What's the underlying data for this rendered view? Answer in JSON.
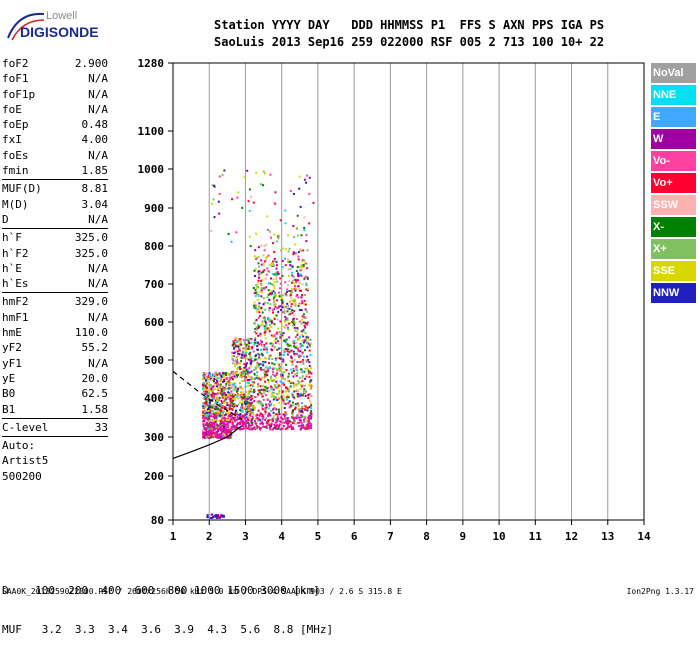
{
  "logo": {
    "line1": "Lowell",
    "line2": "DIGISONDE"
  },
  "header": {
    "row1": "Station YYYY DAY   DDD HHMMSS P1  FFS S AXN PPS IGA PS",
    "row2": "SaoLuis 2013 Sep16 259 022000 RSF 005 2 713 100 10+ 22"
  },
  "params_groups": [
    [
      {
        "k": "foF2",
        "v": "2.900"
      },
      {
        "k": "foF1",
        "v": "N/A"
      },
      {
        "k": "foF1p",
        "v": "N/A"
      },
      {
        "k": "foE",
        "v": "N/A"
      },
      {
        "k": "foEp",
        "v": "0.48"
      },
      {
        "k": "fxI",
        "v": "4.00"
      },
      {
        "k": "foEs",
        "v": "N/A"
      },
      {
        "k": "fmin",
        "v": "1.85"
      }
    ],
    [
      {
        "k": "MUF(D)",
        "v": "8.81"
      },
      {
        "k": "M(D)",
        "v": "3.04"
      },
      {
        "k": "D",
        "v": "N/A"
      }
    ],
    [
      {
        "k": "h`F",
        "v": "325.0"
      },
      {
        "k": "h`F2",
        "v": "325.0"
      },
      {
        "k": "h`E",
        "v": "N/A"
      },
      {
        "k": "h`Es",
        "v": "N/A"
      }
    ],
    [
      {
        "k": "hmF2",
        "v": "329.0"
      },
      {
        "k": "hmF1",
        "v": "N/A"
      },
      {
        "k": "hmE",
        "v": "110.0"
      },
      {
        "k": "yF2",
        "v": "55.2"
      },
      {
        "k": "yF1",
        "v": "N/A"
      },
      {
        "k": "yE",
        "v": "20.0"
      },
      {
        "k": "B0",
        "v": "62.5"
      },
      {
        "k": "B1",
        "v": "1.58"
      }
    ],
    [
      {
        "k": "C-level",
        "v": "33"
      }
    ]
  ],
  "auto": {
    "l1": "Auto:",
    "l2": "Artist5",
    "l3": "500200"
  },
  "legend": [
    {
      "label": "NoVal",
      "color": "#a0a0a0"
    },
    {
      "label": "NNE",
      "color": "#00e0f0"
    },
    {
      "label": "E",
      "color": "#40a8ff"
    },
    {
      "label": "W",
      "color": "#a000a0"
    },
    {
      "label": "Vo-",
      "color": "#ff40a0"
    },
    {
      "label": "Vo+",
      "color": "#ff0030"
    },
    {
      "label": "SSW",
      "color": "#ffb0b0"
    },
    {
      "label": "X-",
      "color": "#008000"
    },
    {
      "label": "X+",
      "color": "#80c060"
    },
    {
      "label": "SSE",
      "color": "#d8d800"
    },
    {
      "label": "NNW",
      "color": "#2020c0"
    }
  ],
  "bottom": {
    "row1": "D    100  200  400  600  800 1000 1500 3000 [km]",
    "row2": "MUF   3.2  3.3  3.4  3.6  3.9  4.3  5.6  8.8 [MHz]"
  },
  "footer": "SAA0K_2013259022000.RSF / 260fx256h 50 kHz 5.0 km / DPS-4 SAA0K 903 / 2.6 S 315.8 E",
  "version": "Ion2Png 1.3.17",
  "chart_data": {
    "type": "scatter",
    "xlabel": "",
    "ylabel": "",
    "xlim": [
      1,
      14
    ],
    "ylim": [
      80,
      1280
    ],
    "x_ticks": [
      1,
      2,
      3,
      4,
      5,
      6,
      7,
      8,
      9,
      10,
      11,
      12,
      13,
      14
    ],
    "y_ticks": [
      80,
      200,
      300,
      400,
      500,
      600,
      700,
      800,
      900,
      1000,
      1100,
      1280
    ],
    "grid": true,
    "profile_curve": {
      "f": [
        1.0,
        1.5,
        2.0,
        2.5,
        2.9
      ],
      "h": [
        245,
        262,
        280,
        300,
        329
      ]
    },
    "dashed_curve": {
      "f": [
        1.0,
        1.4,
        1.8,
        2.2,
        2.6,
        2.9
      ],
      "h": [
        470,
        440,
        410,
        385,
        362,
        345
      ]
    }
  }
}
